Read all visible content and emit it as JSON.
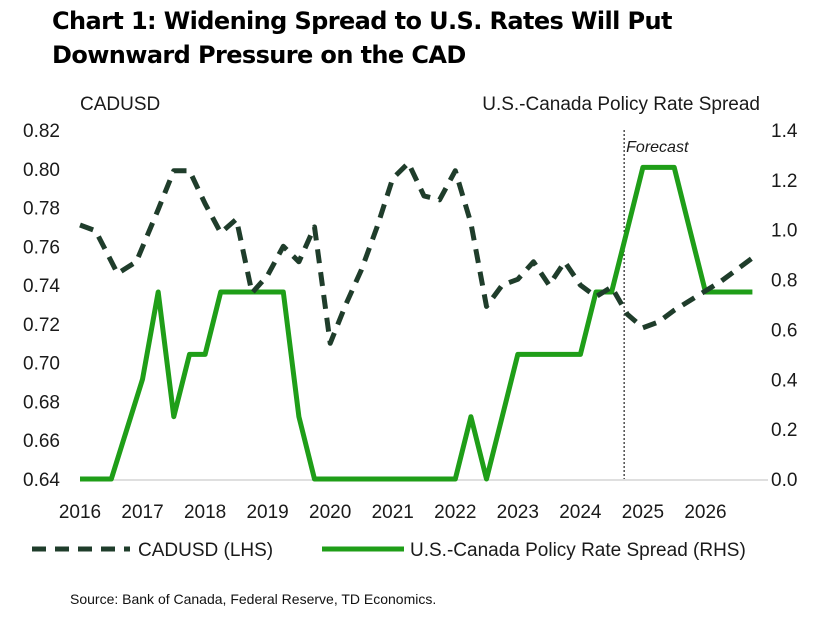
{
  "chart_data": {
    "type": "line",
    "title": "Chart 1: Widening Spread to U.S. Rates Will Put Downward Pressure on the CAD",
    "left_axis_label": "CADUSD",
    "right_axis_label": "U.S.-Canada Policy Rate Spread",
    "left_ylim": [
      0.64,
      0.82
    ],
    "left_ticks": [
      "0.82",
      "0.80",
      "0.78",
      "0.76",
      "0.74",
      "0.72",
      "0.70",
      "0.68",
      "0.66",
      "0.64"
    ],
    "left_tick_values": [
      0.82,
      0.8,
      0.78,
      0.76,
      0.74,
      0.72,
      0.7,
      0.68,
      0.66,
      0.64
    ],
    "right_ylim": [
      0.0,
      1.4
    ],
    "right_ticks": [
      "1.4",
      "1.2",
      "1.0",
      "0.8",
      "0.6",
      "0.4",
      "0.2",
      "0.0"
    ],
    "right_tick_values": [
      1.4,
      1.2,
      1.0,
      0.8,
      0.6,
      0.4,
      0.2,
      0.0
    ],
    "xlim": [
      2016,
      2027
    ],
    "x_ticks": [
      "2016",
      "2017",
      "2018",
      "2019",
      "2020",
      "2021",
      "2022",
      "2023",
      "2024",
      "2025",
      "2026"
    ],
    "x_tick_positions": [
      2016.0,
      2017.0,
      2018.0,
      2019.0,
      2020.0,
      2021.0,
      2022.0,
      2023.0,
      2024.0,
      2025.0,
      2026.0
    ],
    "forecast_x": 2024.7,
    "forecast_label": "Forecast",
    "series": [
      {
        "name": "CADUSD (LHS)",
        "axis": "left",
        "style": "dashed",
        "color": "#1f3d2b",
        "x": [
          2016.0,
          2016.25,
          2016.6,
          2016.9,
          2017.25,
          2017.5,
          2017.75,
          2018.0,
          2018.25,
          2018.5,
          2018.75,
          2019.0,
          2019.25,
          2019.5,
          2019.75,
          2020.0,
          2020.25,
          2020.5,
          2020.75,
          2021.0,
          2021.25,
          2021.5,
          2021.75,
          2022.0,
          2022.25,
          2022.5,
          2022.75,
          2023.0,
          2023.25,
          2023.5,
          2023.75,
          2024.0,
          2024.25,
          2024.5,
          2024.75,
          2025.0,
          2025.25,
          2025.5,
          2025.75,
          2026.0,
          2026.25,
          2026.5,
          2026.75
        ],
        "values": [
          0.771,
          0.768,
          0.746,
          0.752,
          0.779,
          0.799,
          0.799,
          0.782,
          0.767,
          0.774,
          0.736,
          0.745,
          0.76,
          0.752,
          0.77,
          0.71,
          0.73,
          0.748,
          0.77,
          0.795,
          0.803,
          0.786,
          0.784,
          0.799,
          0.772,
          0.729,
          0.74,
          0.743,
          0.752,
          0.74,
          0.752,
          0.74,
          0.734,
          0.739,
          0.725,
          0.718,
          0.721,
          0.727,
          0.732,
          0.737,
          0.742,
          0.748,
          0.754
        ]
      },
      {
        "name": "U.S.-Canada Policy Rate Spread (RHS)",
        "axis": "right",
        "style": "solid",
        "color": "#1f9e18",
        "x": [
          2016.0,
          2016.5,
          2017.0,
          2017.25,
          2017.5,
          2017.75,
          2018.0,
          2018.25,
          2018.5,
          2018.75,
          2019.0,
          2019.25,
          2019.5,
          2019.75,
          2020.0,
          2020.5,
          2021.0,
          2021.5,
          2022.0,
          2022.25,
          2022.5,
          2022.75,
          2023.0,
          2023.25,
          2023.5,
          2023.75,
          2024.0,
          2024.25,
          2024.5,
          2024.75,
          2025.0,
          2025.25,
          2025.5,
          2025.75,
          2026.0,
          2026.25,
          2026.5,
          2026.75
        ],
        "values": [
          0.0,
          0.0,
          0.4,
          0.75,
          0.25,
          0.5,
          0.5,
          0.75,
          0.75,
          0.75,
          0.75,
          0.75,
          0.25,
          0.0,
          0.0,
          0.0,
          0.0,
          0.0,
          0.0,
          0.25,
          0.0,
          0.25,
          0.5,
          0.5,
          0.5,
          0.5,
          0.5,
          0.75,
          0.75,
          1.0,
          1.25,
          1.25,
          1.25,
          1.0,
          0.75,
          0.75,
          0.75,
          0.75
        ]
      }
    ],
    "legend": {
      "placement": "bottom",
      "entries": [
        "CADUSD (LHS)",
        "U.S.-Canada Policy Rate Spread (RHS)"
      ]
    },
    "source": "Source: Bank of Canada, Federal Reserve, TD Economics."
  }
}
